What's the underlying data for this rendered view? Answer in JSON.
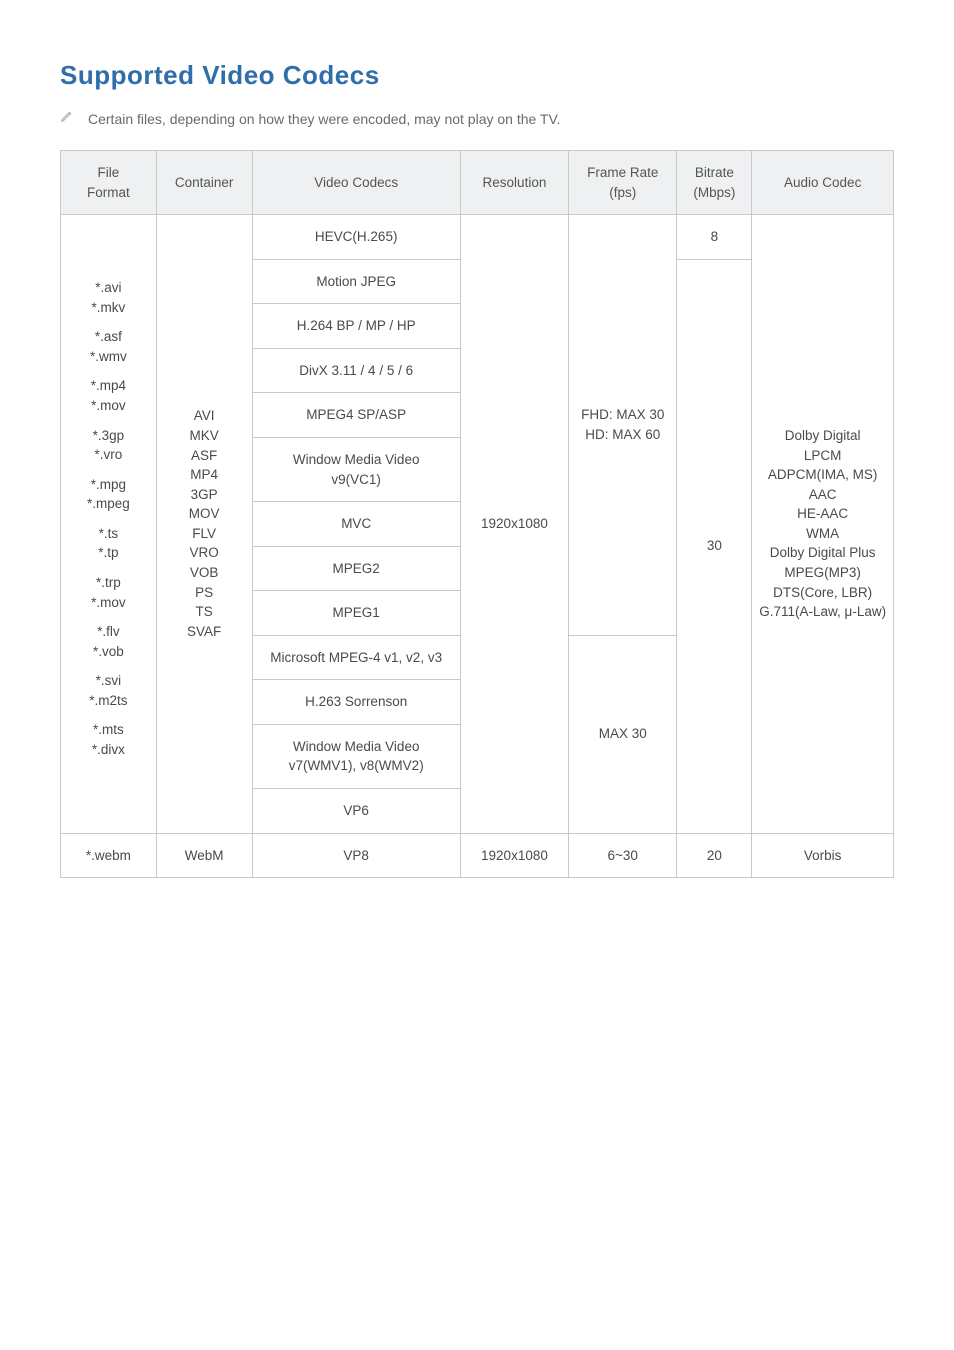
{
  "title": "Supported Video Codecs",
  "note": "Certain files, depending on how they were encoded, may not play on the TV.",
  "headers": {
    "file_format": "File\nFormat",
    "container": "Container",
    "video_codecs": "Video Codecs",
    "resolution": "Resolution",
    "frame_rate": "Frame Rate\n(fps)",
    "bitrate": "Bitrate\n(Mbps)",
    "audio_codec": "Audio Codec"
  },
  "file_formats": [
    "*.avi",
    "*.mkv",
    "*.asf",
    "*.wmv",
    "*.mp4",
    "*.mov",
    "*.3gp",
    "*.vro",
    "*.mpg",
    "*.mpeg",
    "*.ts",
    "*.tp",
    "*.trp",
    "*.mov",
    "*.flv",
    "*.vob",
    "*.svi",
    "*.m2ts",
    "*.mts",
    "*.divx"
  ],
  "containers": [
    "AVI",
    "MKV",
    "ASF",
    "MP4",
    "3GP",
    "MOV",
    "FLV",
    "VRO",
    "VOB",
    "PS",
    "TS",
    "SVAF"
  ],
  "codecs": {
    "hevc": "HEVC(H.265)",
    "mjpeg": "Motion JPEG",
    "h264": "H.264 BP / MP / HP",
    "divx": "DivX 3.11 / 4 / 5 / 6",
    "mpeg4": "MPEG4 SP/ASP",
    "wmv9": "Window Media Video\nv9(VC1)",
    "mvc": "MVC",
    "mpeg2": "MPEG2",
    "mpeg1": "MPEG1",
    "msmpeg4": "Microsoft MPEG-4 v1, v2, v3",
    "h263": "H.263 Sorrenson",
    "wmv78": "Window Media Video\nv7(WMV1), v8(WMV2)",
    "vp6": "VP6",
    "vp8": "VP8"
  },
  "resolution_main": "1920x1080",
  "frame_rate_group1": "FHD: MAX 30\nHD: MAX 60",
  "frame_rate_group2": "MAX 30",
  "bitrate_hevc": "8",
  "bitrate_rest": "30",
  "audio_codecs": [
    "Dolby Digital",
    "LPCM",
    "ADPCM(IMA, MS)",
    "AAC",
    "HE-AAC",
    "WMA",
    "Dolby Digital Plus",
    "MPEG(MP3)",
    "DTS(Core, LBR)",
    "G.711(A-Law,\nμ-Law)"
  ],
  "webm": {
    "file_format": "*.webm",
    "container": "WebM",
    "resolution": "1920x1080",
    "frame_rate": "6~30",
    "bitrate": "20",
    "audio_codec": "Vorbis"
  },
  "colors": {
    "title": "#2f6ea8",
    "border": "#c9c9c9",
    "header_bg": "#eef0f1",
    "text": "#4a4a4a"
  }
}
